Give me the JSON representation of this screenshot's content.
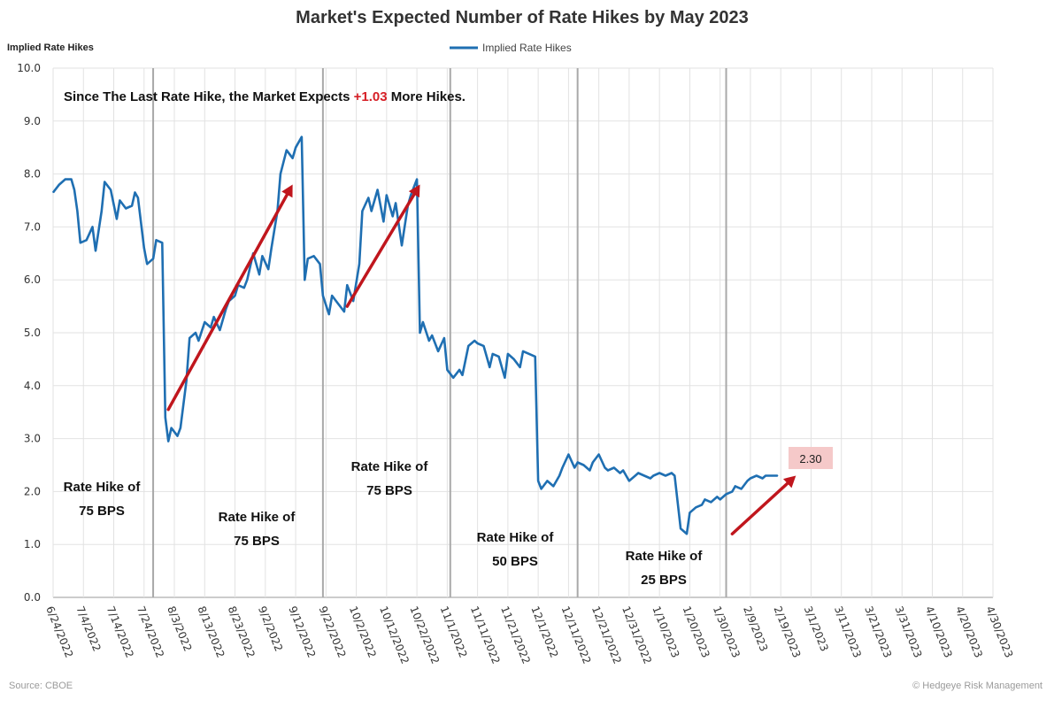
{
  "chart_data": {
    "type": "line",
    "title": "Market's Expected Number of Rate Hikes by May 2023",
    "ylabel": "Implied Rate Hikes",
    "ylim": [
      0,
      10
    ],
    "yticks": [
      "0.0",
      "1.0",
      "2.0",
      "3.0",
      "4.0",
      "5.0",
      "6.0",
      "7.0",
      "8.0",
      "9.0",
      "10.0"
    ],
    "xticks": [
      "6/24/2022",
      "7/4/2022",
      "7/14/2022",
      "7/24/2022",
      "8/3/2022",
      "8/13/2022",
      "8/23/2022",
      "9/2/2022",
      "9/12/2022",
      "9/22/2022",
      "10/2/2022",
      "10/12/2022",
      "10/22/2022",
      "11/1/2022",
      "11/11/2022",
      "11/21/2022",
      "12/1/2022",
      "12/11/2022",
      "12/21/2022",
      "12/31/2022",
      "1/10/2023",
      "1/20/2023",
      "1/30/2023",
      "2/9/2023",
      "2/19/2023",
      "3/1/2023",
      "3/11/2023",
      "3/21/2023",
      "3/31/2023",
      "4/10/2023",
      "4/20/2023",
      "4/30/2023"
    ],
    "grid": true,
    "legend": "top-center",
    "series": [
      {
        "name": "Implied Rate Hikes",
        "color": "#1f6fb2",
        "points": [
          [
            "6/24/2022",
            7.65
          ],
          [
            "6/26/2022",
            7.8
          ],
          [
            "6/28/2022",
            7.9
          ],
          [
            "6/30/2022",
            7.9
          ],
          [
            "7/1/2022",
            7.7
          ],
          [
            "7/2/2022",
            7.3
          ],
          [
            "7/3/2022",
            6.7
          ],
          [
            "7/5/2022",
            6.75
          ],
          [
            "7/7/2022",
            7.0
          ],
          [
            "7/8/2022",
            6.55
          ],
          [
            "7/10/2022",
            7.3
          ],
          [
            "7/11/2022",
            7.85
          ],
          [
            "7/13/2022",
            7.7
          ],
          [
            "7/15/2022",
            7.15
          ],
          [
            "7/16/2022",
            7.5
          ],
          [
            "7/18/2022",
            7.35
          ],
          [
            "7/20/2022",
            7.4
          ],
          [
            "7/21/2022",
            7.65
          ],
          [
            "7/22/2022",
            7.55
          ],
          [
            "7/24/2022",
            6.6
          ],
          [
            "7/25/2022",
            6.3
          ],
          [
            "7/27/2022",
            6.4
          ],
          [
            "7/28/2022",
            6.75
          ],
          [
            "7/30/2022",
            6.7
          ],
          [
            "7/31/2022",
            3.4
          ],
          [
            "8/1/2022",
            2.95
          ],
          [
            "8/2/2022",
            3.2
          ],
          [
            "8/4/2022",
            3.05
          ],
          [
            "8/5/2022",
            3.2
          ],
          [
            "8/7/2022",
            4.1
          ],
          [
            "8/8/2022",
            4.9
          ],
          [
            "8/10/2022",
            5.0
          ],
          [
            "8/11/2022",
            4.85
          ],
          [
            "8/13/2022",
            5.2
          ],
          [
            "8/15/2022",
            5.1
          ],
          [
            "8/16/2022",
            5.3
          ],
          [
            "8/18/2022",
            5.05
          ],
          [
            "8/20/2022",
            5.45
          ],
          [
            "8/21/2022",
            5.6
          ],
          [
            "8/23/2022",
            5.7
          ],
          [
            "8/24/2022",
            5.9
          ],
          [
            "8/26/2022",
            5.85
          ],
          [
            "8/27/2022",
            6.0
          ],
          [
            "8/29/2022",
            6.5
          ],
          [
            "8/31/2022",
            6.1
          ],
          [
            "9/1/2022",
            6.45
          ],
          [
            "9/3/2022",
            6.2
          ],
          [
            "9/4/2022",
            6.6
          ],
          [
            "9/6/2022",
            7.3
          ],
          [
            "9/7/2022",
            8.0
          ],
          [
            "9/9/2022",
            8.45
          ],
          [
            "9/11/2022",
            8.3
          ],
          [
            "9/12/2022",
            8.5
          ],
          [
            "9/14/2022",
            8.7
          ],
          [
            "9/15/2022",
            6.0
          ],
          [
            "9/16/2022",
            6.4
          ],
          [
            "9/18/2022",
            6.45
          ],
          [
            "9/20/2022",
            6.3
          ],
          [
            "9/21/2022",
            5.7
          ],
          [
            "9/23/2022",
            5.35
          ],
          [
            "9/24/2022",
            5.7
          ],
          [
            "9/26/2022",
            5.55
          ],
          [
            "9/28/2022",
            5.4
          ],
          [
            "9/29/2022",
            5.9
          ],
          [
            "10/1/2022",
            5.6
          ],
          [
            "10/3/2022",
            6.3
          ],
          [
            "10/4/2022",
            7.3
          ],
          [
            "10/6/2022",
            7.55
          ],
          [
            "10/7/2022",
            7.3
          ],
          [
            "10/9/2022",
            7.7
          ],
          [
            "10/11/2022",
            7.1
          ],
          [
            "10/12/2022",
            7.6
          ],
          [
            "10/14/2022",
            7.2
          ],
          [
            "10/15/2022",
            7.45
          ],
          [
            "10/17/2022",
            6.65
          ],
          [
            "10/19/2022",
            7.4
          ],
          [
            "10/20/2022",
            7.6
          ],
          [
            "10/22/2022",
            7.9
          ],
          [
            "10/23/2022",
            5.0
          ],
          [
            "10/24/2022",
            5.2
          ],
          [
            "10/26/2022",
            4.85
          ],
          [
            "10/27/2022",
            4.95
          ],
          [
            "10/29/2022",
            4.65
          ],
          [
            "10/31/2022",
            4.9
          ],
          [
            "11/1/2022",
            4.3
          ],
          [
            "11/3/2022",
            4.15
          ],
          [
            "11/5/2022",
            4.3
          ],
          [
            "11/6/2022",
            4.2
          ],
          [
            "11/8/2022",
            4.75
          ],
          [
            "11/10/2022",
            4.85
          ],
          [
            "11/11/2022",
            4.8
          ],
          [
            "11/13/2022",
            4.75
          ],
          [
            "11/15/2022",
            4.35
          ],
          [
            "11/16/2022",
            4.6
          ],
          [
            "11/18/2022",
            4.55
          ],
          [
            "11/20/2022",
            4.15
          ],
          [
            "11/21/2022",
            4.6
          ],
          [
            "11/23/2022",
            4.5
          ],
          [
            "11/25/2022",
            4.35
          ],
          [
            "11/26/2022",
            4.65
          ],
          [
            "11/28/2022",
            4.6
          ],
          [
            "11/30/2022",
            4.55
          ],
          [
            "12/1/2022",
            2.2
          ],
          [
            "12/2/2022",
            2.05
          ],
          [
            "12/4/2022",
            2.2
          ],
          [
            "12/6/2022",
            2.1
          ],
          [
            "12/8/2022",
            2.3
          ],
          [
            "12/9/2022",
            2.45
          ],
          [
            "12/11/2022",
            2.7
          ],
          [
            "12/13/2022",
            2.45
          ],
          [
            "12/14/2022",
            2.55
          ],
          [
            "12/16/2022",
            2.5
          ],
          [
            "12/18/2022",
            2.4
          ],
          [
            "12/19/2022",
            2.55
          ],
          [
            "12/21/2022",
            2.7
          ],
          [
            "12/23/2022",
            2.45
          ],
          [
            "12/24/2022",
            2.4
          ],
          [
            "12/26/2022",
            2.45
          ],
          [
            "12/28/2022",
            2.35
          ],
          [
            "12/29/2022",
            2.4
          ],
          [
            "12/31/2022",
            2.2
          ],
          [
            "1/2/2023",
            2.3
          ],
          [
            "1/3/2023",
            2.35
          ],
          [
            "1/5/2023",
            2.3
          ],
          [
            "1/7/2023",
            2.25
          ],
          [
            "1/8/2023",
            2.3
          ],
          [
            "1/10/2023",
            2.35
          ],
          [
            "1/12/2023",
            2.3
          ],
          [
            "1/14/2023",
            2.35
          ],
          [
            "1/15/2023",
            2.3
          ],
          [
            "1/17/2023",
            1.3
          ],
          [
            "1/19/2023",
            1.2
          ],
          [
            "1/20/2023",
            1.6
          ],
          [
            "1/22/2023",
            1.7
          ],
          [
            "1/24/2023",
            1.75
          ],
          [
            "1/25/2023",
            1.85
          ],
          [
            "1/27/2023",
            1.8
          ],
          [
            "1/29/2023",
            1.9
          ],
          [
            "1/30/2023",
            1.85
          ],
          [
            "2/1/2023",
            1.95
          ],
          [
            "2/3/2023",
            2.0
          ],
          [
            "2/4/2023",
            2.1
          ],
          [
            "2/6/2023",
            2.05
          ],
          [
            "2/8/2023",
            2.2
          ],
          [
            "2/9/2023",
            2.25
          ],
          [
            "2/11/2023",
            2.3
          ],
          [
            "2/13/2023",
            2.25
          ],
          [
            "2/14/2023",
            2.3
          ],
          [
            "2/16/2023",
            2.3
          ],
          [
            "2/18/2023",
            2.3
          ]
        ]
      }
    ],
    "rate_hike_dates": [
      "7/27/2022",
      "9/21/2022",
      "11/2/2022",
      "12/14/2022",
      "2/1/2023"
    ],
    "rate_hike_labels": [
      {
        "line1": "Rate Hike of",
        "line2": "75 BPS"
      },
      {
        "line1": "Rate Hike of",
        "line2": "75 BPS"
      },
      {
        "line1": "Rate Hike of",
        "line2": "75 BPS"
      },
      {
        "line1": "Rate Hike of",
        "line2": "50 BPS"
      },
      {
        "line1": "Rate Hike of",
        "line2": "25 BPS"
      }
    ],
    "headline": {
      "before": "Since The Last Rate Hike, the Market Expects ",
      "highlight": "+1.03",
      "after": " More Hikes."
    },
    "last_value_label": "2.30",
    "trend_arrows": [
      {
        "from": [
          "8/1/2022",
          3.55
        ],
        "to": [
          "9/11/2022",
          7.8
        ]
      },
      {
        "from": [
          "9/29/2022",
          5.5
        ],
        "to": [
          "10/23/2022",
          7.8
        ]
      },
      {
        "from": [
          "2/3/2023",
          1.2
        ],
        "to": [
          "2/24/2023",
          2.3
        ]
      }
    ],
    "source": "Source: CBOE",
    "credit": "© Hedgeye Risk Management"
  }
}
